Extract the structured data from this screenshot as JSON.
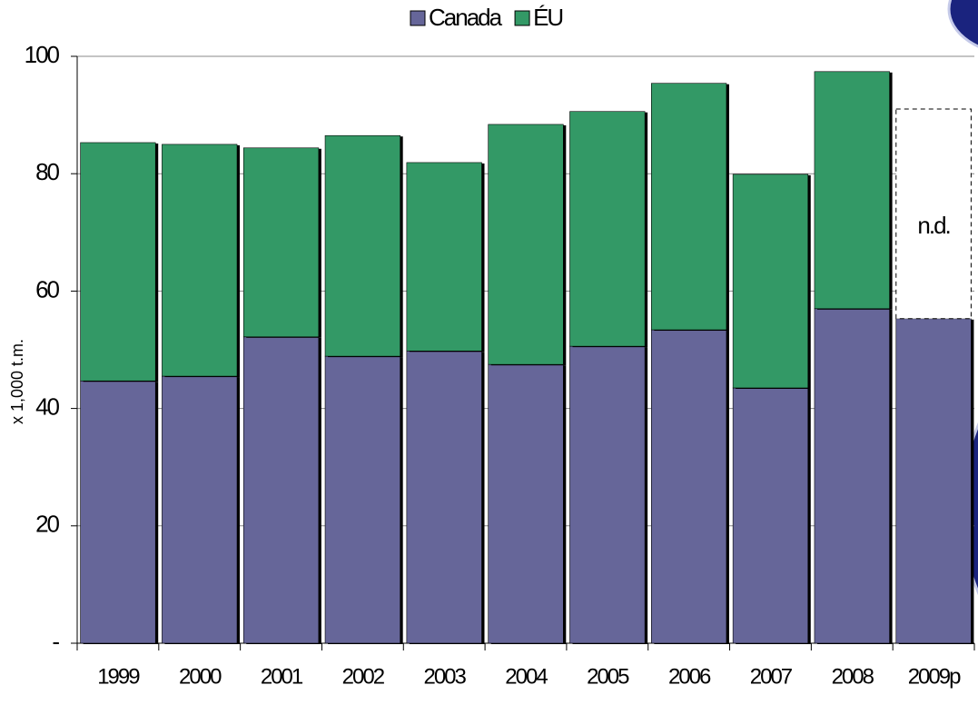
{
  "chart_data": {
    "type": "stacked_bar",
    "categories": [
      "1999",
      "2000",
      "2001",
      "2002",
      "2003",
      "2004",
      "2005",
      "2006",
      "2007",
      "2008",
      "2009p"
    ],
    "series": [
      {
        "name": "Canada",
        "color": "#666699",
        "values": [
          44.7,
          45.5,
          52.2,
          48.9,
          49.8,
          47.5,
          50.6,
          53.4,
          43.5,
          57.0,
          55.3
        ]
      },
      {
        "name": "ÉU",
        "color": "#339966",
        "values": [
          40.6,
          39.5,
          32.2,
          37.6,
          32.1,
          40.9,
          40.0,
          42.0,
          36.4,
          40.4,
          null
        ]
      }
    ],
    "y_label": "x 1,000 t.m.",
    "annotation": "n.d.",
    "ylim": [
      0,
      100
    ],
    "yticks": [
      {
        "value": 0,
        "label": "-"
      },
      20,
      40,
      60,
      80,
      100
    ],
    "grid": true,
    "legend": "top"
  }
}
